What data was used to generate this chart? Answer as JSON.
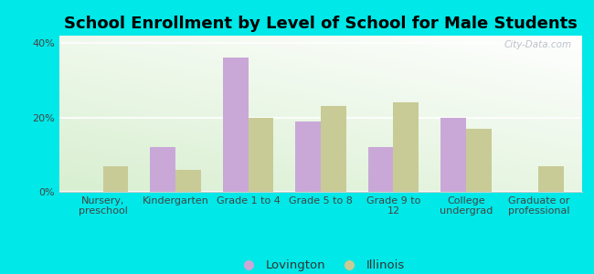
{
  "title": "School Enrollment by Level of School for Male Students",
  "categories": [
    "Nursery,\npreschool",
    "Kindergarten",
    "Grade 1 to 4",
    "Grade 5 to 8",
    "Grade 9 to\n12",
    "College\nundergrad",
    "Graduate or\nprofessional"
  ],
  "lovington": [
    0,
    12,
    36,
    19,
    12,
    20,
    0
  ],
  "illinois": [
    7,
    6,
    20,
    23,
    24,
    17,
    7
  ],
  "lovington_color": "#c9a8d8",
  "illinois_color": "#c8cb96",
  "background_color": "#00e8e8",
  "ylim": [
    0,
    42
  ],
  "yticks": [
    0,
    20,
    40
  ],
  "ytick_labels": [
    "0%",
    "20%",
    "40%"
  ],
  "bar_width": 0.35,
  "legend_labels": [
    "Lovington",
    "Illinois"
  ],
  "title_fontsize": 13,
  "tick_fontsize": 8,
  "legend_fontsize": 9.5
}
